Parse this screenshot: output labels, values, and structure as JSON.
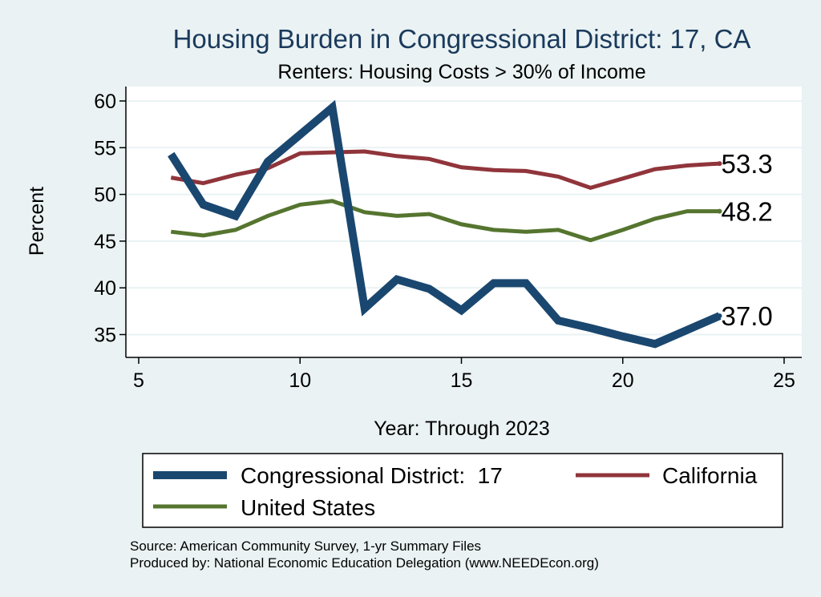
{
  "chart_data": {
    "type": "line",
    "title": "Housing Burden in Congressional District:  17, CA",
    "subtitle": "Renters: Housing Costs > 30% of Income",
    "xlabel": "Year: Through 2023",
    "ylabel": "Percent",
    "xlim": [
      5,
      25
    ],
    "ylim": [
      33,
      61
    ],
    "xticks": [
      "5",
      "10",
      "15",
      "20",
      "25"
    ],
    "yticks": [
      "35",
      "40",
      "45",
      "50",
      "55",
      "60"
    ],
    "grid": true,
    "legend_position": "bottom",
    "x": [
      6,
      7,
      8,
      9,
      10,
      11,
      12,
      13,
      14,
      15,
      16,
      17,
      18,
      19,
      20,
      21,
      22,
      23
    ],
    "series": [
      {
        "name": "Congressional District:  17",
        "color": "#1a476f",
        "values": [
          54.3,
          48.9,
          47.7,
          53.5,
          56.4,
          59.3,
          37.8,
          40.9,
          39.9,
          37.6,
          40.5,
          40.5,
          36.5,
          35.7,
          34.8,
          34.0,
          35.5,
          37.0
        ],
        "end_label": "37.0"
      },
      {
        "name": "California",
        "color": "#90353b",
        "values": [
          51.8,
          51.2,
          52.1,
          52.8,
          54.4,
          54.5,
          54.6,
          54.1,
          53.8,
          52.9,
          52.6,
          52.5,
          51.9,
          50.7,
          51.7,
          52.7,
          53.1,
          53.3
        ],
        "end_label": "53.3"
      },
      {
        "name": "United States",
        "color": "#55752f",
        "values": [
          46.0,
          45.6,
          46.2,
          47.7,
          48.9,
          49.3,
          48.1,
          47.7,
          47.9,
          46.8,
          46.2,
          46.0,
          46.2,
          45.1,
          46.2,
          47.4,
          48.2,
          48.2
        ],
        "end_label": "48.2"
      }
    ],
    "notes": [
      "Source: American Community Survey, 1-yr Summary Files",
      "Produced by: National Economic Education Delegation (www.NEEDEcon.org)"
    ]
  }
}
